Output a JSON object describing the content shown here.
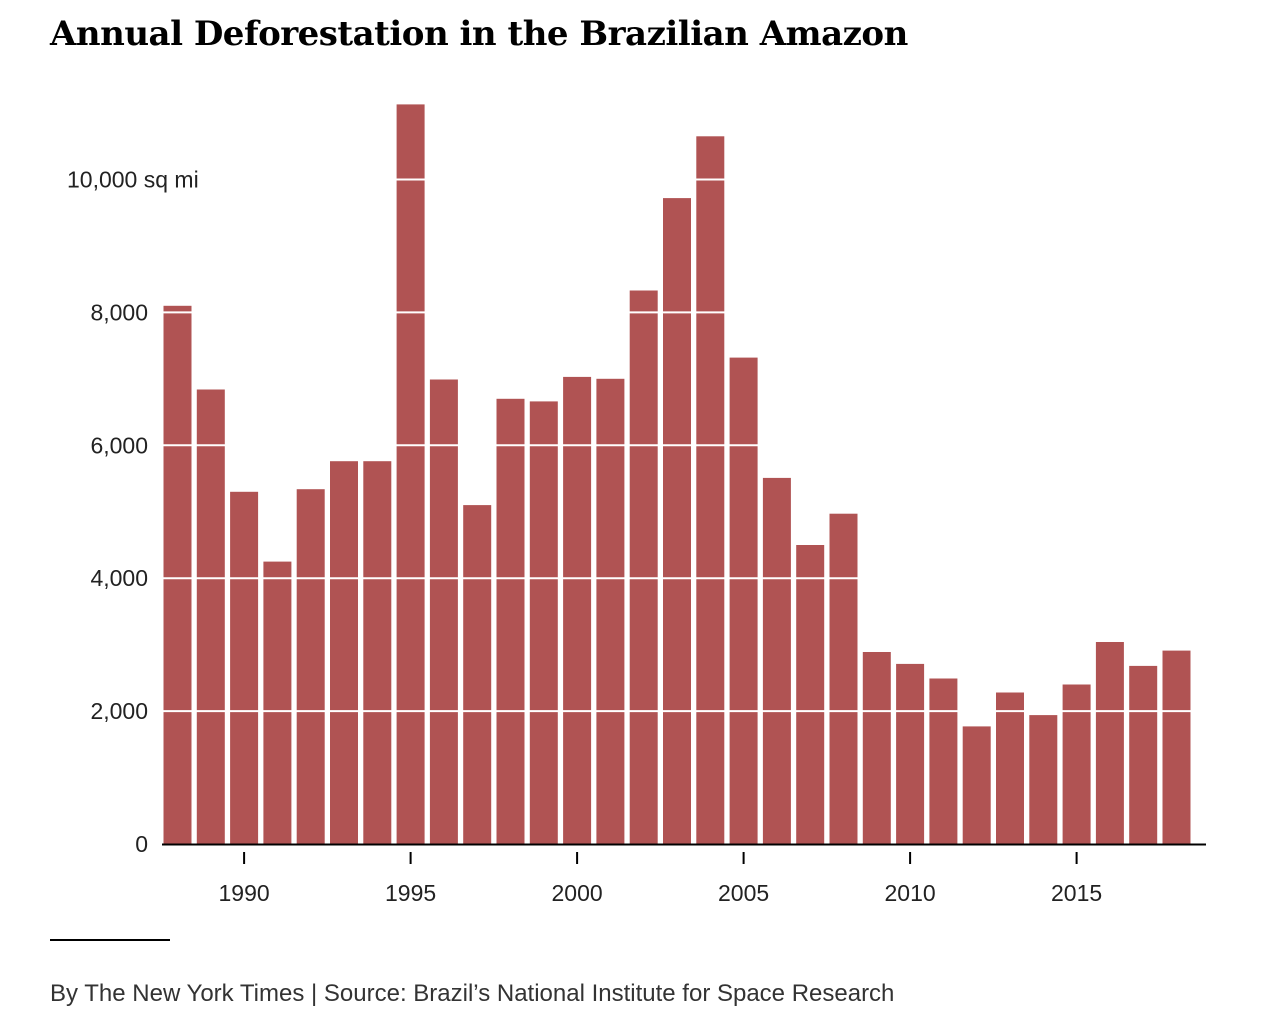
{
  "chart_data": {
    "type": "bar",
    "title": "Annual Deforestation in the Brazilian Amazon",
    "xlabel": "",
    "ylabel": "",
    "y_unit_label": "sq mi",
    "categories": [
      1988,
      1989,
      1990,
      1991,
      1992,
      1993,
      1994,
      1995,
      1996,
      1997,
      1998,
      1999,
      2000,
      2001,
      2002,
      2003,
      2004,
      2005,
      2006,
      2007,
      2008,
      2009,
      2010,
      2011,
      2012,
      2013,
      2014,
      2015,
      2016,
      2017,
      2018
    ],
    "values": [
      8100,
      6840,
      5300,
      4250,
      5340,
      5760,
      5760,
      11130,
      6990,
      5100,
      6700,
      6660,
      7030,
      7000,
      8330,
      9720,
      10650,
      7320,
      5510,
      4500,
      4970,
      2890,
      2710,
      2490,
      1770,
      2280,
      1940,
      2400,
      3040,
      2680,
      2910
    ],
    "ylim": [
      0,
      11130
    ],
    "yticks": [
      0,
      2000,
      4000,
      6000,
      8000,
      10000
    ],
    "ytick_labels": [
      "0",
      "2,000",
      "4,000",
      "6,000",
      "8,000",
      "10,000 sq mi"
    ],
    "xticks": [
      1990,
      1995,
      2000,
      2005,
      2010,
      2015
    ],
    "xtick_labels": [
      "1990",
      "1995",
      "2000",
      "2005",
      "2010",
      "2015"
    ],
    "grid": "horizontal lines drawn over bars",
    "legend": "none",
    "bar_color": "#b05353",
    "gridline_color": "#ffffff",
    "axis_color": "#000000"
  },
  "footer": {
    "credit": "By The New York Times | Source: Brazil’s National Institute for Space Research"
  }
}
